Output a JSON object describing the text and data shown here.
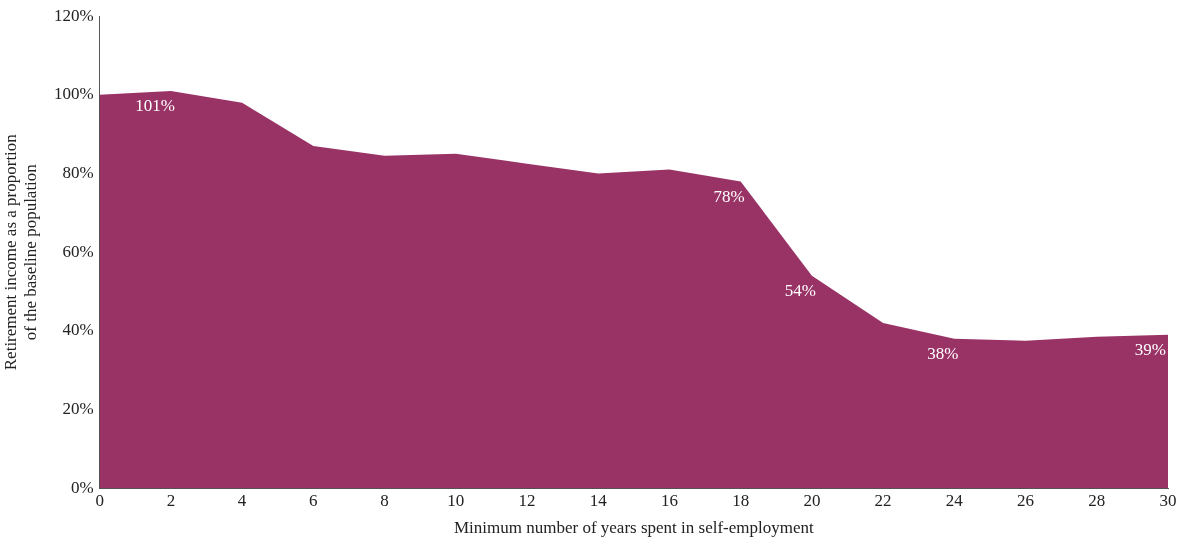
{
  "chart_data": {
    "type": "area",
    "xlabel": "Minimum number of years spent in self-employment",
    "ylabel": "Retirement income as a proportion of the baseline population",
    "x": [
      0,
      2,
      4,
      6,
      8,
      10,
      12,
      14,
      16,
      18,
      20,
      22,
      24,
      26,
      28,
      30
    ],
    "series": [
      {
        "color": "#993366",
        "values": [
          100,
          101,
          98,
          87,
          84.5,
          85,
          82.5,
          80,
          81,
          78,
          54,
          42,
          38,
          37.5,
          38.5,
          39
        ],
        "value_labels": [
          null,
          "101%",
          null,
          null,
          null,
          null,
          null,
          null,
          null,
          "78%",
          "54%",
          null,
          "38%",
          null,
          null,
          "39%"
        ]
      }
    ],
    "xlim": [
      0,
      30
    ],
    "xticks": [
      0,
      2,
      4,
      6,
      8,
      10,
      12,
      14,
      16,
      18,
      20,
      22,
      24,
      26,
      28,
      30
    ],
    "ylim": [
      0,
      120
    ],
    "yticks": [
      {
        "value": 0,
        "label": "0%"
      },
      {
        "value": 20,
        "label": "20%"
      },
      {
        "value": 40,
        "label": "40%"
      },
      {
        "value": 60,
        "label": "60%"
      },
      {
        "value": 80,
        "label": "80%"
      },
      {
        "value": 100,
        "label": "100%"
      },
      {
        "value": 120,
        "label": "120%"
      }
    ],
    "grid": false,
    "legend": false
  }
}
